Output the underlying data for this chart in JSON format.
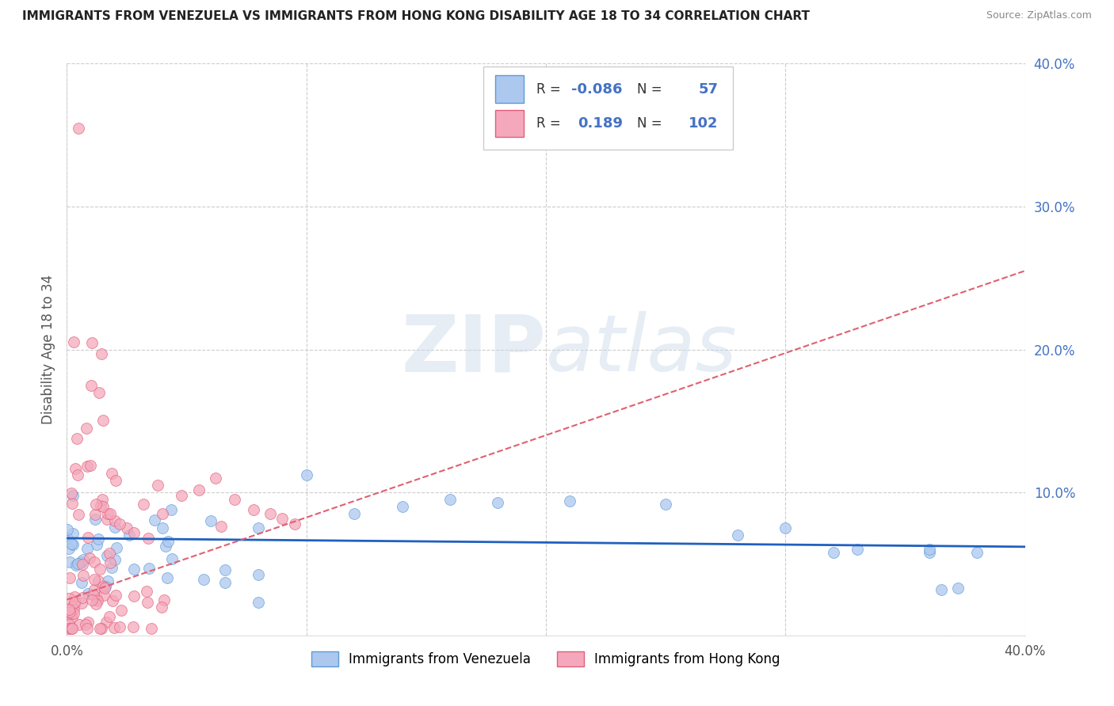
{
  "title": "IMMIGRANTS FROM VENEZUELA VS IMMIGRANTS FROM HONG KONG DISABILITY AGE 18 TO 34 CORRELATION CHART",
  "source": "Source: ZipAtlas.com",
  "ylabel": "Disability Age 18 to 34",
  "xlim": [
    0.0,
    0.4
  ],
  "ylim": [
    0.0,
    0.4
  ],
  "legend_label1": "Immigrants from Venezuela",
  "legend_label2": "Immigrants from Hong Kong",
  "R1": -0.086,
  "N1": 57,
  "R2": 0.189,
  "N2": 102,
  "color1": "#adc8ef",
  "color2": "#f5a8bc",
  "edge_color1": "#5b9bd5",
  "edge_color2": "#e0607a",
  "trendline_color1": "#2060c0",
  "trendline_color2": "#e06070",
  "background_color": "#ffffff",
  "grid_color": "#cccccc",
  "watermark": "ZIPatlas",
  "ytick_color": "#4472c4",
  "xtick_color": "#555555",
  "title_color": "#222222",
  "source_color": "#888888",
  "ylabel_color": "#555555"
}
